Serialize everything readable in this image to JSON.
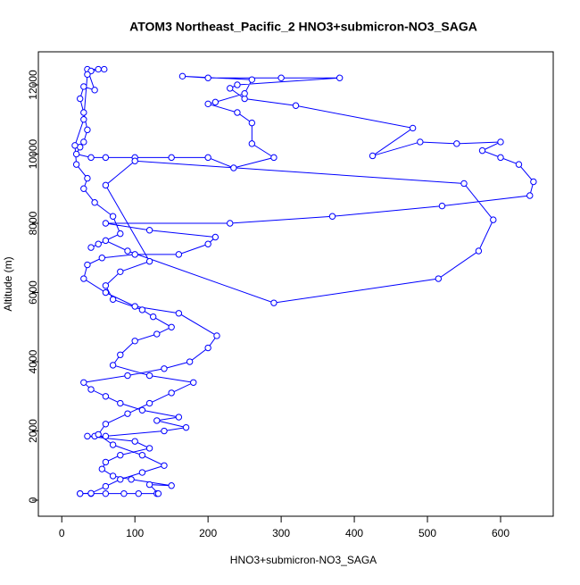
{
  "chart_data": {
    "type": "line",
    "title": "ATOM3 Northeast_Pacific_2 HNO3+submicron-NO3_SAGA",
    "x_label": "HNO3+submicron-NO3_SAGA",
    "y_label": "Altitude (m)",
    "x": [
      25,
      40,
      60,
      85,
      105,
      130,
      132,
      120,
      150,
      95,
      70,
      55,
      60,
      80,
      120,
      100,
      35,
      45,
      60,
      140,
      170,
      130,
      160,
      110,
      80,
      60,
      40,
      30,
      90,
      140,
      175,
      200,
      212,
      160,
      100,
      60,
      30,
      35,
      55,
      100,
      160,
      200,
      210,
      120,
      60,
      230,
      370,
      520,
      640,
      645,
      625,
      600,
      575,
      600,
      540,
      490,
      425,
      480,
      320,
      250,
      230,
      240,
      380,
      300,
      200,
      165,
      260,
      250,
      210,
      200,
      240,
      260,
      260,
      290,
      235,
      200,
      150,
      100,
      60,
      40,
      20,
      25,
      30,
      35,
      30,
      25,
      30,
      45,
      35,
      50,
      58,
      40,
      35,
      30,
      18,
      20,
      35,
      30,
      45,
      70,
      80,
      50,
      40,
      60,
      90,
      290,
      515,
      570,
      590,
      550,
      100,
      60,
      120,
      80,
      60,
      70,
      110,
      125,
      150,
      130,
      100,
      80,
      70,
      120,
      180,
      150,
      120,
      90,
      60,
      50,
      70,
      110,
      140,
      110,
      80,
      60,
      40,
      25
    ],
    "series": [
      {
        "name": "Altitude",
        "color": "#0000ff",
        "values": [
          190,
          190,
          190,
          190,
          190,
          190,
          190,
          450,
          420,
          600,
          700,
          900,
          1100,
          1300,
          1500,
          1700,
          1850,
          1850,
          1850,
          2000,
          2100,
          2300,
          2400,
          2600,
          2800,
          3000,
          3200,
          3400,
          3600,
          3800,
          4000,
          4400,
          4750,
          5400,
          5600,
          6000,
          6400,
          6800,
          7000,
          7100,
          7100,
          7400,
          7600,
          7800,
          8000,
          8000,
          8200,
          8500,
          8800,
          9200,
          9700,
          9900,
          10100,
          10350,
          10300,
          10350,
          9950,
          10750,
          11400,
          11600,
          11900,
          12000,
          12200,
          12200,
          12200,
          12250,
          12150,
          11750,
          11500,
          11450,
          11200,
          10900,
          10300,
          9900,
          9600,
          9900,
          9900,
          9900,
          9900,
          9900,
          10000,
          10200,
          10350,
          10700,
          11200,
          11600,
          11950,
          11850,
          12450,
          12450,
          12450,
          12400,
          12300,
          11000,
          10250,
          9700,
          9300,
          9000,
          8600,
          8200,
          7700,
          7400,
          7300,
          7500,
          7200,
          5700,
          6400,
          7200,
          8100,
          9150,
          9800,
          9100,
          6900,
          6600,
          6200,
          5800,
          5500,
          5300,
          5000,
          4800,
          4600,
          4200,
          3900,
          3600,
          3400,
          3100,
          2800,
          2500,
          2200,
          1900,
          1600,
          1300,
          1000,
          800,
          600,
          400,
          200,
          190
        ]
      }
    ],
    "xlim": [
      -32,
      672
    ],
    "ylim": [
      -464,
      12955
    ],
    "xticks": [
      0,
      100,
      200,
      300,
      400,
      500,
      600
    ],
    "yticks": [
      0,
      2000,
      4000,
      6000,
      8000,
      10000,
      12000
    ],
    "grid": false
  }
}
